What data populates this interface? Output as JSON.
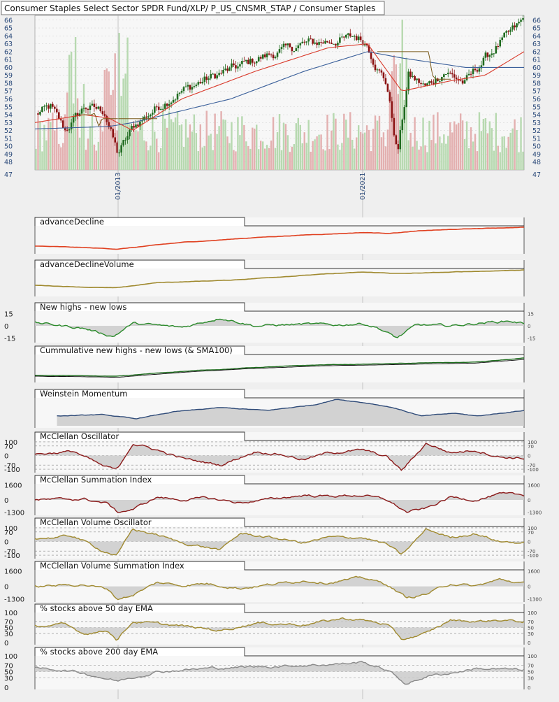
{
  "header": {
    "title": "Consumer Staples Select Sector SPDR Fund/XLP/ P_US_CNSMR_STAP / Consumer Staples"
  },
  "colors": {
    "background": "#efefef",
    "plot_bg": "#f7f7f7",
    "grid": "#bbbbbb",
    "candle_up": "#1f6b1f",
    "candle_down": "#8b1010",
    "vol_up": "#b7d9b0",
    "vol_down": "#e3b0b0",
    "sma_red": "#d93a2b",
    "sma_brown": "#7a5a1a",
    "sma_blue": "#3a5f9a",
    "axis_label": "#2b4a7a",
    "ad_line": "#e04020",
    "adv_line": "#a08a30",
    "nhnl_line": "#2a8a2a",
    "cum_line": "#1a6a1a",
    "wm_line": "#2e4a78",
    "mco_line": "#8b1a1a",
    "mvo_line": "#a08a30",
    "ema50_line": "#a08a30",
    "ema200_line": "#8a8a8a",
    "shade": "#c8c8c8"
  },
  "chart_data": [
    {
      "type": "candlestick",
      "name": "price",
      "title": "Consumer Staples Select Sector SPDR Fund/XLP/ P_US_CNSMR_STAP / Consumer Staples",
      "ylim": [
        47,
        66.6
      ],
      "y_ticks": [
        48,
        49,
        50,
        51,
        52,
        53,
        54,
        55,
        56,
        57,
        58,
        59,
        60,
        61,
        62,
        63,
        64,
        65,
        66
      ],
      "y_tick_labels_left": [
        "48",
        "49",
        "50",
        "51",
        "52",
        "53",
        "54",
        "55",
        "56",
        "57",
        "58",
        "59",
        "60",
        "61",
        "62",
        "63",
        "64",
        "65",
        "66"
      ],
      "y_tick_labels_right": [
        "48",
        "49",
        "50",
        "51",
        "52",
        "53",
        "54",
        "55",
        "56",
        "57",
        "58",
        "59",
        "60",
        "61",
        "62",
        "63",
        "64",
        "65",
        "66"
      ],
      "y_bottom_label": "47",
      "x_tick_labels": [
        "01/2013",
        "01/2021"
      ],
      "x_tick_at": [
        0.17,
        0.67
      ],
      "price_keypoints": [
        [
          0,
          54
        ],
        [
          0.03,
          55
        ],
        [
          0.06,
          52
        ],
        [
          0.1,
          55
        ],
        [
          0.14,
          54.5
        ],
        [
          0.168,
          49
        ],
        [
          0.2,
          52.5
        ],
        [
          0.25,
          55
        ],
        [
          0.3,
          57
        ],
        [
          0.35,
          58.5
        ],
        [
          0.45,
          61
        ],
        [
          0.55,
          63
        ],
        [
          0.63,
          63.5
        ],
        [
          0.655,
          64
        ],
        [
          0.68,
          63
        ],
        [
          0.7,
          60
        ],
        [
          0.72,
          58
        ],
        [
          0.742,
          49
        ],
        [
          0.765,
          59
        ],
        [
          0.8,
          57.5
        ],
        [
          0.84,
          59.5
        ],
        [
          0.88,
          58
        ],
        [
          0.92,
          61
        ],
        [
          0.96,
          63.5
        ],
        [
          1,
          66
        ]
      ],
      "sma_red_keypoints": [
        [
          0,
          53
        ],
        [
          0.1,
          54
        ],
        [
          0.15,
          53.6
        ],
        [
          0.2,
          52
        ],
        [
          0.3,
          56
        ],
        [
          0.45,
          59.5
        ],
        [
          0.6,
          62.5
        ],
        [
          0.68,
          63
        ],
        [
          0.75,
          57
        ],
        [
          0.85,
          58.3
        ],
        [
          0.92,
          59
        ],
        [
          1,
          62
        ]
      ],
      "sma_brown_keypoints": [
        [
          0.1,
          54
        ],
        [
          0.15,
          54.2
        ],
        [
          0.2,
          52.5
        ],
        [
          0.25,
          53.5
        ],
        [
          0.7,
          62
        ],
        [
          0.75,
          59
        ],
        [
          0.8,
          58.5
        ],
        [
          0.85,
          58.5
        ]
      ],
      "sma_blue_keypoints": [
        [
          0,
          52.2
        ],
        [
          0.15,
          52.5
        ],
        [
          0.2,
          53
        ],
        [
          0.4,
          56
        ],
        [
          0.55,
          59.5
        ],
        [
          0.68,
          62
        ],
        [
          0.75,
          61.2
        ],
        [
          0.88,
          60
        ],
        [
          1,
          60
        ]
      ],
      "volume_note": "pale green/red volume bars behind price"
    },
    {
      "type": "line",
      "name": "advanceDecline",
      "title": "advanceDecline",
      "keypoints": [
        [
          0,
          0.22
        ],
        [
          0.168,
          0.1
        ],
        [
          0.3,
          0.35
        ],
        [
          0.45,
          0.55
        ],
        [
          0.55,
          0.65
        ],
        [
          0.67,
          0.75
        ],
        [
          0.72,
          0.72
        ],
        [
          0.8,
          0.82
        ],
        [
          1,
          0.95
        ]
      ]
    },
    {
      "type": "line",
      "name": "advanceDeclineVolume",
      "title": "advanceDeclineVolume",
      "keypoints": [
        [
          0,
          0.35
        ],
        [
          0.168,
          0.25
        ],
        [
          0.25,
          0.45
        ],
        [
          0.4,
          0.55
        ],
        [
          0.55,
          0.75
        ],
        [
          0.67,
          0.85
        ],
        [
          0.75,
          0.8
        ],
        [
          0.85,
          0.85
        ],
        [
          1,
          0.95
        ]
      ]
    },
    {
      "type": "line",
      "name": "newHighsNewLows",
      "title": "New highs - new lows",
      "y_ticks_left": [
        "15",
        "0",
        "-15"
      ],
      "y_ticks_right": [
        "15",
        "0",
        "-15"
      ],
      "ylim": [
        -18,
        18
      ],
      "keypoints": [
        [
          0,
          4
        ],
        [
          0.1,
          -3
        ],
        [
          0.16,
          -13
        ],
        [
          0.2,
          3
        ],
        [
          0.3,
          -2
        ],
        [
          0.38,
          10
        ],
        [
          0.45,
          0
        ],
        [
          0.55,
          2
        ],
        [
          0.62,
          1
        ],
        [
          0.67,
          3
        ],
        [
          0.7,
          -2
        ],
        [
          0.74,
          -15
        ],
        [
          0.78,
          1
        ],
        [
          0.85,
          0
        ],
        [
          0.92,
          4
        ],
        [
          0.97,
          6
        ],
        [
          1,
          3
        ]
      ]
    },
    {
      "type": "line",
      "name": "cumulativeNewHighsLows",
      "title": "Cummulative new highs - new lows (& SMA100)",
      "keypoints": [
        [
          0,
          0.2
        ],
        [
          0.168,
          0.15
        ],
        [
          0.3,
          0.35
        ],
        [
          0.45,
          0.5
        ],
        [
          0.6,
          0.6
        ],
        [
          0.75,
          0.65
        ],
        [
          0.9,
          0.7
        ],
        [
          1,
          0.85
        ]
      ]
    },
    {
      "type": "area",
      "name": "weinsteinMomentum",
      "title": "Weinstein Momentum",
      "start_at": 0.045,
      "keypoints": [
        [
          0,
          0.35
        ],
        [
          0.1,
          0.4
        ],
        [
          0.168,
          0.25
        ],
        [
          0.25,
          0.5
        ],
        [
          0.35,
          0.65
        ],
        [
          0.45,
          0.55
        ],
        [
          0.55,
          0.75
        ],
        [
          0.6,
          0.95
        ],
        [
          0.67,
          0.8
        ],
        [
          0.72,
          0.65
        ],
        [
          0.78,
          0.35
        ],
        [
          0.85,
          0.45
        ],
        [
          0.9,
          0.35
        ],
        [
          1,
          0.55
        ]
      ]
    },
    {
      "type": "oscillator",
      "name": "mcclellanOscillator",
      "title": "McClellan Oscillator",
      "y_ticks_left": [
        "100",
        "70",
        "0",
        "-70",
        "-100"
      ],
      "y_ticks_right": [
        "100",
        "70",
        "0",
        "-70",
        "-100"
      ],
      "ylim": [
        -110,
        110
      ],
      "guides": [
        100,
        70,
        0,
        -70,
        -100
      ],
      "keypoints": [
        [
          0,
          10
        ],
        [
          0.08,
          30
        ],
        [
          0.14,
          -80
        ],
        [
          0.168,
          -105
        ],
        [
          0.2,
          90
        ],
        [
          0.25,
          40
        ],
        [
          0.3,
          -20
        ],
        [
          0.38,
          -70
        ],
        [
          0.45,
          30
        ],
        [
          0.5,
          10
        ],
        [
          0.55,
          -30
        ],
        [
          0.6,
          20
        ],
        [
          0.67,
          40
        ],
        [
          0.72,
          -10
        ],
        [
          0.75,
          -110
        ],
        [
          0.8,
          90
        ],
        [
          0.85,
          20
        ],
        [
          0.9,
          40
        ],
        [
          0.95,
          -10
        ],
        [
          1,
          -20
        ]
      ]
    },
    {
      "type": "area",
      "name": "mcclellanSummationIndex",
      "title": "McClellan Summation Index",
      "y_ticks_left": [
        "1600",
        "0",
        "-1300"
      ],
      "y_ticks_right": [
        "1600",
        "0",
        "-1300"
      ],
      "ylim": [
        -1400,
        1700
      ],
      "keypoints": [
        [
          0,
          0
        ],
        [
          0.1,
          100
        ],
        [
          0.15,
          -400
        ],
        [
          0.168,
          -1300
        ],
        [
          0.2,
          -1000
        ],
        [
          0.25,
          300
        ],
        [
          0.3,
          0
        ],
        [
          0.35,
          200
        ],
        [
          0.42,
          -300
        ],
        [
          0.5,
          200
        ],
        [
          0.55,
          500
        ],
        [
          0.6,
          400
        ],
        [
          0.67,
          500
        ],
        [
          0.72,
          0
        ],
        [
          0.76,
          -1300
        ],
        [
          0.8,
          -900
        ],
        [
          0.85,
          300
        ],
        [
          0.9,
          0
        ],
        [
          0.95,
          600
        ],
        [
          1,
          500
        ]
      ]
    },
    {
      "type": "oscillator",
      "name": "mcclellanVolumeOscillator",
      "title": "McClellan Volume Oscillator",
      "y_ticks_left": [
        "100",
        "70",
        "0",
        "-70",
        "-100"
      ],
      "y_ticks_right": [
        "100",
        "70",
        "0",
        "-70",
        "-100"
      ],
      "ylim": [
        -110,
        110
      ],
      "guides": [
        100,
        70,
        0,
        -70,
        -100
      ],
      "keypoints": [
        [
          0,
          20
        ],
        [
          0.08,
          40
        ],
        [
          0.14,
          -70
        ],
        [
          0.168,
          -100
        ],
        [
          0.2,
          90
        ],
        [
          0.25,
          50
        ],
        [
          0.3,
          -10
        ],
        [
          0.38,
          -60
        ],
        [
          0.42,
          60
        ],
        [
          0.5,
          20
        ],
        [
          0.55,
          -10
        ],
        [
          0.6,
          30
        ],
        [
          0.67,
          30
        ],
        [
          0.72,
          -20
        ],
        [
          0.75,
          -100
        ],
        [
          0.8,
          90
        ],
        [
          0.85,
          30
        ],
        [
          0.9,
          60
        ],
        [
          0.95,
          0
        ],
        [
          1,
          -10
        ]
      ]
    },
    {
      "type": "area",
      "name": "mcclellanVolumeSummationIndex",
      "title": "McClellan Volume Summation Index",
      "y_ticks_left": [
        "1600",
        "0",
        "-1300"
      ],
      "y_ticks_right": [
        "1600",
        "0",
        "-1300"
      ],
      "ylim": [
        -1400,
        1700
      ],
      "keypoints": [
        [
          0,
          0
        ],
        [
          0.1,
          200
        ],
        [
          0.15,
          -300
        ],
        [
          0.168,
          -1300
        ],
        [
          0.2,
          -900
        ],
        [
          0.25,
          400
        ],
        [
          0.3,
          100
        ],
        [
          0.35,
          300
        ],
        [
          0.42,
          -200
        ],
        [
          0.5,
          300
        ],
        [
          0.55,
          600
        ],
        [
          0.6,
          400
        ],
        [
          0.67,
          900
        ],
        [
          0.72,
          200
        ],
        [
          0.76,
          -1200
        ],
        [
          0.8,
          -800
        ],
        [
          0.85,
          300
        ],
        [
          0.9,
          0
        ],
        [
          0.95,
          700
        ],
        [
          1,
          300
        ]
      ]
    },
    {
      "type": "line",
      "name": "pctAbove50EMA",
      "title": "% stocks above 50 day EMA",
      "y_ticks_left": [
        "100",
        "70",
        "50",
        "30",
        "0"
      ],
      "y_ticks_right": [
        "100",
        "70",
        "50",
        "30",
        "0"
      ],
      "ylim": [
        0,
        100
      ],
      "guides": [
        70,
        50,
        30
      ],
      "keypoints": [
        [
          0,
          55
        ],
        [
          0.06,
          60
        ],
        [
          0.1,
          30
        ],
        [
          0.15,
          40
        ],
        [
          0.168,
          10
        ],
        [
          0.2,
          70
        ],
        [
          0.3,
          55
        ],
        [
          0.38,
          40
        ],
        [
          0.45,
          65
        ],
        [
          0.55,
          60
        ],
        [
          0.63,
          80
        ],
        [
          0.67,
          75
        ],
        [
          0.72,
          60
        ],
        [
          0.75,
          10
        ],
        [
          0.8,
          30
        ],
        [
          0.85,
          75
        ],
        [
          0.9,
          70
        ],
        [
          0.95,
          75
        ],
        [
          1,
          70
        ]
      ]
    },
    {
      "type": "line",
      "name": "pctAbove200EMA",
      "title": "% stocks above 200 day EMA",
      "y_ticks_left": [
        "100",
        "70",
        "50",
        "30",
        "0"
      ],
      "y_ticks_right": [
        "100",
        "70",
        "50",
        "30",
        "0"
      ],
      "ylim": [
        0,
        100
      ],
      "guides": [
        70,
        50,
        30
      ],
      "keypoints": [
        [
          0,
          60
        ],
        [
          0.06,
          55
        ],
        [
          0.1,
          45
        ],
        [
          0.168,
          20
        ],
        [
          0.25,
          50
        ],
        [
          0.35,
          60
        ],
        [
          0.45,
          65
        ],
        [
          0.55,
          70
        ],
        [
          0.63,
          75
        ],
        [
          0.67,
          80
        ],
        [
          0.72,
          55
        ],
        [
          0.76,
          10
        ],
        [
          0.8,
          35
        ],
        [
          0.85,
          45
        ],
        [
          0.9,
          60
        ],
        [
          1,
          55
        ]
      ]
    }
  ]
}
